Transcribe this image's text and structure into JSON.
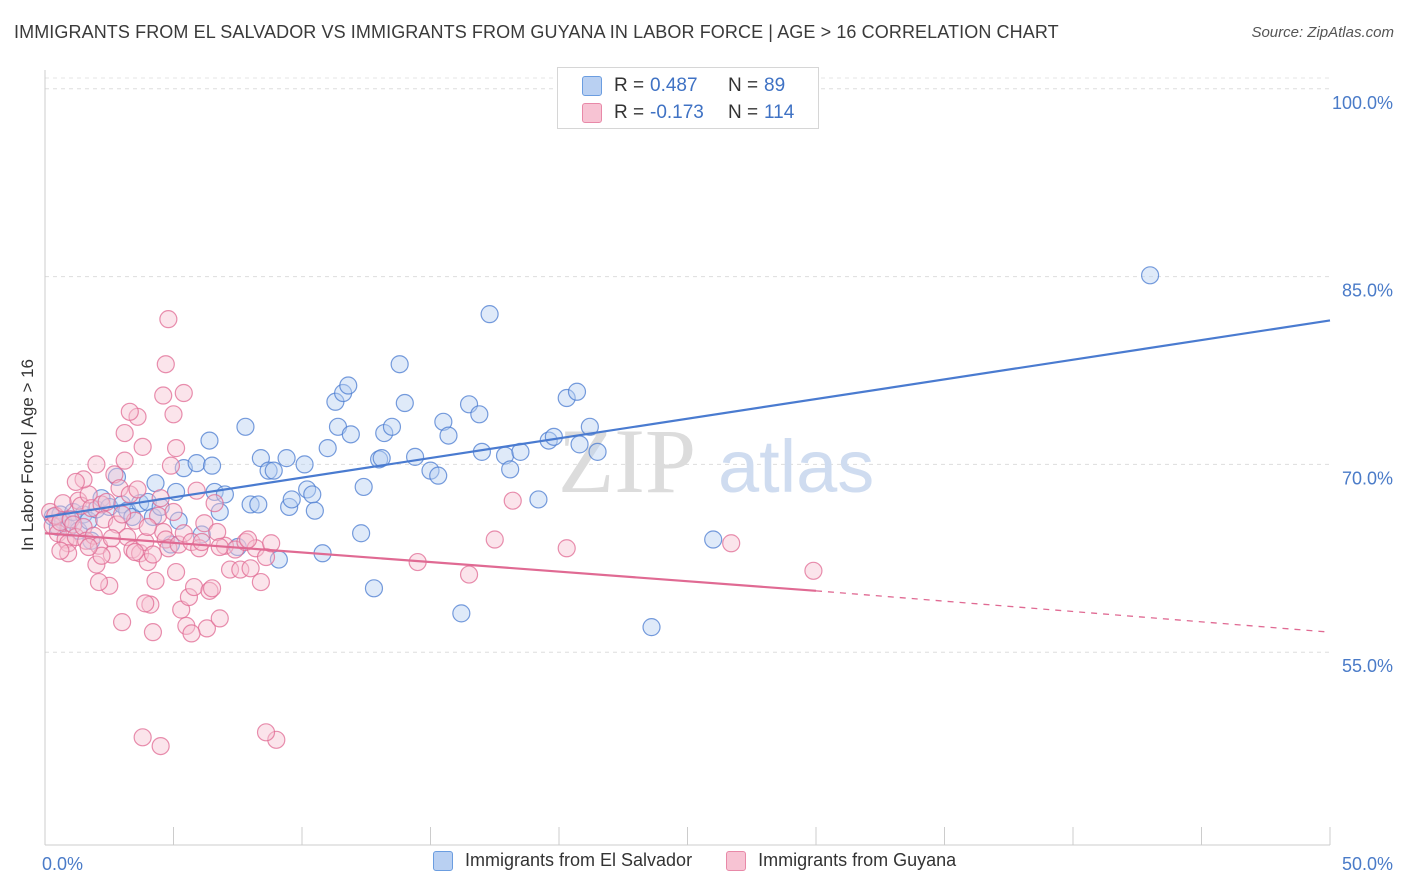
{
  "title": "IMMIGRANTS FROM EL SALVADOR VS IMMIGRANTS FROM GUYANA IN LABOR FORCE | AGE > 16 CORRELATION CHART",
  "source": "Source: ZipAtlas.com",
  "watermark": {
    "zip": "ZIP",
    "atlas": "atlas"
  },
  "stats": {
    "rows": [
      {
        "r_label": "R =",
        "r_value": "0.487",
        "n_label": "N =",
        "n_value": "89",
        "color": "#6b9de0",
        "fill": "#b9d0f2"
      },
      {
        "r_label": "R =",
        "r_value": "-0.173",
        "n_label": "N =",
        "n_value": "114",
        "color": "#e889a8",
        "fill": "#f7c3d3"
      }
    ]
  },
  "legend": {
    "items": [
      {
        "label": "Immigrants from El Salvador",
        "color": "#6b9de0",
        "fill": "#b9d0f2"
      },
      {
        "label": "Immigrants from Guyana",
        "color": "#e889a8",
        "fill": "#f7c3d3"
      }
    ]
  },
  "chart_data": {
    "type": "scatter",
    "title": "IMMIGRANTS FROM EL SALVADOR VS IMMIGRANTS FROM GUYANA IN LABOR FORCE | AGE > 16 CORRELATION CHART",
    "xlabel": "",
    "ylabel": "In Labor Force | Age > 16",
    "xlim": [
      0,
      50
    ],
    "ylim": [
      39.6,
      101.5
    ],
    "x_tick_labels": [
      "0.0%",
      "50.0%"
    ],
    "y_ticks": [
      55,
      70,
      85,
      100
    ],
    "y_tick_labels": [
      "55.0%",
      "70.0%",
      "85.0%",
      "100.0%"
    ],
    "grid": "horizontal dashed",
    "legend_position": "bottom-center",
    "series": [
      {
        "name": "Immigrants from El Salvador",
        "color": "#4a7bd0",
        "fill": "#b9d0f2",
        "trend": {
          "x": [
            0,
            50
          ],
          "y": [
            65.8,
            81.5
          ]
        },
        "points": [
          [
            0.3,
            65.8
          ],
          [
            0.5,
            65.0
          ],
          [
            0.6,
            66.0
          ],
          [
            0.7,
            65.5
          ],
          [
            0.9,
            64.9
          ],
          [
            1.0,
            65.6
          ],
          [
            1.1,
            66.2
          ],
          [
            1.3,
            64.7
          ],
          [
            1.5,
            66.0
          ],
          [
            1.7,
            65.5
          ],
          [
            2.0,
            66.4
          ],
          [
            2.2,
            67.3
          ],
          [
            2.5,
            66.6
          ],
          [
            2.8,
            69.0
          ],
          [
            3.0,
            66.8
          ],
          [
            3.2,
            66.3
          ],
          [
            3.4,
            65.8
          ],
          [
            3.7,
            66.9
          ],
          [
            4.0,
            67.0
          ],
          [
            4.2,
            65.8
          ],
          [
            4.3,
            68.5
          ],
          [
            4.5,
            66.6
          ],
          [
            4.9,
            63.6
          ],
          [
            5.1,
            67.8
          ],
          [
            5.2,
            65.5
          ],
          [
            5.4,
            69.7
          ],
          [
            5.9,
            70.1
          ],
          [
            6.1,
            64.4
          ],
          [
            6.4,
            71.9
          ],
          [
            6.5,
            69.9
          ],
          [
            6.6,
            67.8
          ],
          [
            6.8,
            66.2
          ],
          [
            7.0,
            67.6
          ],
          [
            7.5,
            63.4
          ],
          [
            7.8,
            73.0
          ],
          [
            8.0,
            66.8
          ],
          [
            8.3,
            66.8
          ],
          [
            8.4,
            70.5
          ],
          [
            8.7,
            69.5
          ],
          [
            8.9,
            69.5
          ],
          [
            9.1,
            62.4
          ],
          [
            9.4,
            70.5
          ],
          [
            9.5,
            66.6
          ],
          [
            9.6,
            67.2
          ],
          [
            10.1,
            70.0
          ],
          [
            10.2,
            68.0
          ],
          [
            10.4,
            67.6
          ],
          [
            10.5,
            66.3
          ],
          [
            10.8,
            62.9
          ],
          [
            11.0,
            71.3
          ],
          [
            11.3,
            75.0
          ],
          [
            11.4,
            73.0
          ],
          [
            11.6,
            75.7
          ],
          [
            11.8,
            76.3
          ],
          [
            11.9,
            72.4
          ],
          [
            12.3,
            64.5
          ],
          [
            12.4,
            68.2
          ],
          [
            12.8,
            60.1
          ],
          [
            13.0,
            70.4
          ],
          [
            13.1,
            70.5
          ],
          [
            13.2,
            72.5
          ],
          [
            13.5,
            73.0
          ],
          [
            13.8,
            78.0
          ],
          [
            14.0,
            74.9
          ],
          [
            14.4,
            70.6
          ],
          [
            15.0,
            69.5
          ],
          [
            15.3,
            69.1
          ],
          [
            15.5,
            73.4
          ],
          [
            15.7,
            72.3
          ],
          [
            16.2,
            58.1
          ],
          [
            16.5,
            74.8
          ],
          [
            16.9,
            74.0
          ],
          [
            17.0,
            71.0
          ],
          [
            17.3,
            82.0
          ],
          [
            17.9,
            70.7
          ],
          [
            18.1,
            69.6
          ],
          [
            18.5,
            71.0
          ],
          [
            19.2,
            67.2
          ],
          [
            19.6,
            71.9
          ],
          [
            19.8,
            72.2
          ],
          [
            20.3,
            75.3
          ],
          [
            20.7,
            75.8
          ],
          [
            20.8,
            71.6
          ],
          [
            21.2,
            73.0
          ],
          [
            21.5,
            71.0
          ],
          [
            23.6,
            57.0
          ],
          [
            26.0,
            64.0
          ],
          [
            43.0,
            85.1
          ],
          [
            1.8,
            63.9
          ]
        ]
      },
      {
        "name": "Immigrants from Guyana",
        "color": "#e06a93",
        "fill": "#f7c3d3",
        "trend": {
          "x": [
            0,
            30
          ],
          "y": [
            64.5,
            59.9
          ]
        },
        "trend_dashed": {
          "x": [
            30,
            50
          ],
          "y": [
            59.9,
            56.6
          ]
        },
        "points": [
          [
            0.2,
            66.2
          ],
          [
            0.3,
            65.1
          ],
          [
            0.4,
            65.9
          ],
          [
            0.5,
            64.5
          ],
          [
            0.6,
            65.4
          ],
          [
            0.7,
            66.9
          ],
          [
            0.8,
            64.0
          ],
          [
            0.9,
            63.7
          ],
          [
            1.0,
            65.6
          ],
          [
            1.1,
            65.2
          ],
          [
            1.2,
            64.2
          ],
          [
            1.3,
            67.1
          ],
          [
            1.4,
            66.7
          ],
          [
            1.5,
            65.0
          ],
          [
            1.6,
            63.9
          ],
          [
            1.7,
            67.6
          ],
          [
            1.8,
            66.5
          ],
          [
            1.9,
            64.3
          ],
          [
            2.0,
            62.0
          ],
          [
            2.1,
            63.5
          ],
          [
            2.2,
            66.8
          ],
          [
            2.3,
            65.6
          ],
          [
            2.4,
            67.0
          ],
          [
            2.5,
            60.3
          ],
          [
            2.6,
            62.8
          ],
          [
            2.7,
            69.2
          ],
          [
            2.8,
            65.2
          ],
          [
            2.9,
            68.1
          ],
          [
            3.0,
            57.4
          ],
          [
            3.1,
            70.3
          ],
          [
            3.2,
            64.2
          ],
          [
            3.3,
            67.6
          ],
          [
            3.4,
            63.2
          ],
          [
            3.5,
            65.5
          ],
          [
            3.6,
            68.0
          ],
          [
            3.7,
            62.9
          ],
          [
            3.8,
            71.4
          ],
          [
            3.9,
            63.8
          ],
          [
            4.0,
            62.2
          ],
          [
            4.1,
            58.8
          ],
          [
            4.2,
            62.8
          ],
          [
            4.3,
            60.7
          ],
          [
            4.4,
            65.9
          ],
          [
            4.5,
            67.3
          ],
          [
            4.6,
            64.6
          ],
          [
            4.7,
            64.0
          ],
          [
            4.8,
            63.3
          ],
          [
            4.9,
            69.9
          ],
          [
            5.0,
            66.2
          ],
          [
            5.1,
            61.4
          ],
          [
            5.2,
            63.6
          ],
          [
            5.3,
            58.4
          ],
          [
            5.4,
            64.5
          ],
          [
            5.5,
            57.1
          ],
          [
            5.6,
            59.4
          ],
          [
            5.7,
            63.8
          ],
          [
            5.8,
            60.2
          ],
          [
            5.9,
            67.9
          ],
          [
            6.0,
            63.3
          ],
          [
            6.1,
            63.8
          ],
          [
            6.2,
            65.3
          ],
          [
            6.3,
            56.9
          ],
          [
            6.4,
            59.9
          ],
          [
            6.5,
            60.1
          ],
          [
            6.6,
            66.9
          ],
          [
            6.8,
            57.7
          ],
          [
            7.0,
            63.5
          ],
          [
            7.2,
            61.6
          ],
          [
            7.4,
            63.2
          ],
          [
            7.6,
            61.6
          ],
          [
            7.8,
            63.8
          ],
          [
            8.0,
            61.7
          ],
          [
            8.2,
            63.3
          ],
          [
            8.4,
            60.6
          ],
          [
            8.6,
            62.6
          ],
          [
            8.8,
            63.7
          ],
          [
            9.0,
            48.0
          ],
          [
            3.1,
            72.5
          ],
          [
            3.6,
            73.8
          ],
          [
            3.8,
            48.2
          ],
          [
            4.7,
            78.0
          ],
          [
            5.1,
            71.3
          ],
          [
            5.4,
            75.7
          ],
          [
            4.6,
            75.5
          ],
          [
            4.8,
            81.6
          ],
          [
            3.3,
            74.2
          ],
          [
            4.5,
            47.5
          ],
          [
            5.0,
            74.0
          ],
          [
            17.5,
            64.0
          ],
          [
            18.2,
            67.1
          ],
          [
            20.3,
            63.3
          ],
          [
            26.7,
            63.7
          ],
          [
            29.9,
            61.5
          ],
          [
            14.5,
            62.2
          ],
          [
            16.5,
            61.2
          ],
          [
            2.0,
            70.0
          ],
          [
            1.5,
            68.8
          ],
          [
            3.0,
            66.0
          ],
          [
            4.0,
            65.0
          ],
          [
            6.7,
            64.6
          ],
          [
            7.9,
            64.0
          ],
          [
            2.6,
            64.1
          ],
          [
            3.5,
            63.0
          ],
          [
            6.8,
            63.4
          ],
          [
            0.9,
            62.9
          ],
          [
            1.2,
            68.6
          ],
          [
            2.1,
            60.6
          ],
          [
            3.9,
            58.9
          ],
          [
            5.7,
            56.5
          ],
          [
            8.6,
            48.6
          ],
          [
            4.2,
            56.6
          ],
          [
            2.2,
            62.7
          ],
          [
            1.7,
            63.4
          ],
          [
            0.6,
            63.1
          ]
        ]
      }
    ]
  }
}
